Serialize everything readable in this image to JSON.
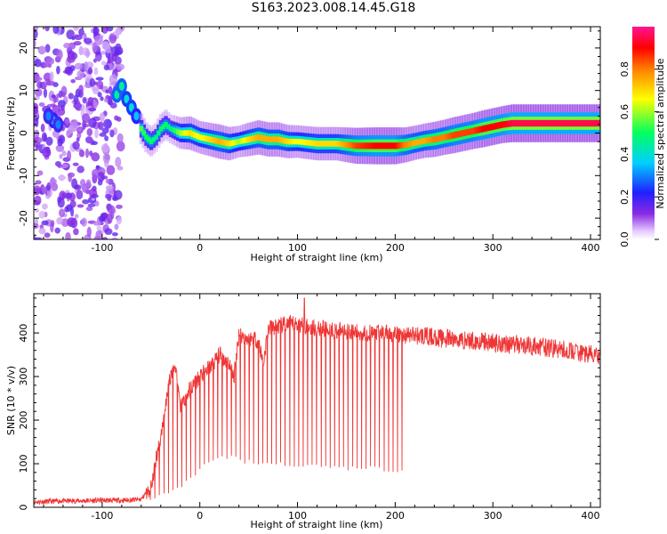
{
  "title": "S163.2023.008.14.45.G18",
  "chart_data": [
    {
      "type": "heatmap",
      "xlabel": "Height of straight line (km)",
      "ylabel": "Frequency (Hz)",
      "xlim": [
        -170,
        410
      ],
      "ylim": [
        -25,
        25
      ],
      "x_ticks": [
        -100,
        0,
        100,
        200,
        300,
        400
      ],
      "y_ticks": [
        -20,
        -10,
        0,
        10,
        20
      ],
      "colorbar": {
        "label": "Normalized spectral amplitude",
        "range": [
          0,
          1
        ],
        "ticks": [
          0.0,
          0.2,
          0.4,
          0.6,
          0.8
        ]
      },
      "ridge": {
        "x": [
          -60,
          -55,
          -50,
          -45,
          -40,
          -35,
          -30,
          -20,
          -10,
          0,
          10,
          20,
          30,
          40,
          50,
          60,
          70,
          80,
          90,
          100,
          120,
          140,
          160,
          180,
          200,
          210,
          220,
          230,
          240,
          250,
          260,
          270,
          280,
          290,
          300,
          310,
          320,
          340,
          360,
          380,
          400,
          410
        ],
        "y": [
          1,
          -1,
          -2,
          -1,
          1,
          2,
          1,
          0,
          0,
          -1,
          -1.5,
          -2,
          -2.5,
          -2,
          -1.5,
          -1,
          -1.5,
          -1.5,
          -2,
          -2,
          -2.5,
          -2.5,
          -3,
          -3,
          -3,
          -2.8,
          -2.3,
          -1.8,
          -1.5,
          -1,
          -0.5,
          0,
          0.5,
          1,
          1.5,
          2,
          2.3,
          2.3,
          2.3,
          2.3,
          2.3,
          2.3
        ],
        "amp": [
          0.55,
          0.5,
          0.5,
          0.45,
          0.5,
          0.5,
          0.45,
          0.6,
          0.7,
          0.65,
          0.7,
          0.75,
          0.7,
          0.6,
          0.7,
          0.75,
          0.75,
          0.75,
          0.7,
          0.65,
          0.7,
          0.7,
          0.85,
          0.9,
          0.9,
          0.8,
          0.75,
          0.75,
          0.8,
          0.8,
          0.85,
          0.85,
          0.85,
          0.9,
          0.9,
          0.9,
          0.95,
          0.95,
          0.95,
          0.95,
          0.95,
          0.95
        ]
      },
      "early_blobs": [
        {
          "x": -85,
          "y": 9,
          "amp": 0.45
        },
        {
          "x": -80,
          "y": 11,
          "amp": 0.45
        },
        {
          "x": -75,
          "y": 8,
          "amp": 0.4
        },
        {
          "x": -70,
          "y": 6,
          "amp": 0.4
        },
        {
          "x": -65,
          "y": 4,
          "amp": 0.35
        },
        {
          "x": -150,
          "y": 3,
          "amp": 0.35
        },
        {
          "x": -145,
          "y": 2,
          "amp": 0.3
        },
        {
          "x": -155,
          "y": 4,
          "amp": 0.3
        }
      ]
    },
    {
      "type": "line",
      "xlabel": "Height of straight line (km)",
      "ylabel": "SNR (10 * v/v)",
      "xlim": [
        -170,
        410
      ],
      "ylim": [
        0,
        490
      ],
      "x_ticks": [
        -100,
        0,
        100,
        200,
        300,
        400
      ],
      "y_ticks": [
        0,
        100,
        200,
        300,
        400
      ],
      "series": [
        {
          "color": "#ef3535",
          "x": [
            -170,
            -150,
            -120,
            -100,
            -80,
            -60,
            -50,
            -45,
            -40,
            -35,
            -30,
            -25,
            -20,
            -10,
            0,
            10,
            20,
            30,
            35,
            40,
            45,
            50,
            55,
            60,
            65,
            70,
            80,
            90,
            100,
            110,
            120,
            130,
            140,
            150,
            160,
            170,
            180,
            190,
            200,
            210,
            220,
            240,
            260,
            280,
            300,
            320,
            340,
            360,
            380,
            400,
            410
          ],
          "envelope": [
            12,
            14,
            15,
            16,
            16,
            18,
            50,
            110,
            160,
            240,
            300,
            330,
            230,
            270,
            300,
            320,
            350,
            330,
            300,
            400,
            390,
            385,
            390,
            380,
            330,
            410,
            415,
            420,
            420,
            415,
            410,
            410,
            405,
            405,
            400,
            400,
            400,
            400,
            395,
            395,
            395,
            390,
            385,
            382,
            378,
            375,
            370,
            365,
            358,
            350,
            345
          ],
          "dip_floor": [
            12,
            14,
            15,
            16,
            16,
            18,
            10,
            20,
            30,
            20,
            30,
            40,
            40,
            60,
            80,
            100,
            110,
            110,
            110,
            105,
            100,
            100,
            100,
            95,
            95,
            95,
            95,
            90,
            90,
            90,
            90,
            90,
            85,
            85,
            85,
            85,
            85,
            80,
            80,
            80,
            395,
            390,
            385,
            382,
            378,
            375,
            370,
            365,
            358,
            350,
            345
          ],
          "oscillation_end_x": 210,
          "spike": {
            "x": 107,
            "y": 480
          }
        }
      ]
    }
  ]
}
